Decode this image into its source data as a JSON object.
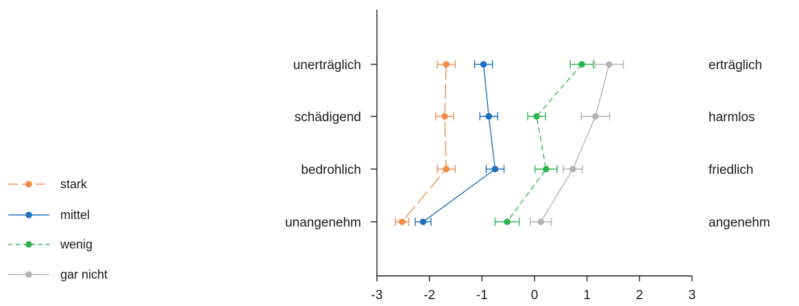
{
  "chart_data": {
    "type": "line",
    "orientation": "horizontal",
    "title": "",
    "xlabel": "",
    "ylabel": "",
    "xlim": [
      -3,
      3
    ],
    "x_ticks": [
      -3,
      -2,
      -1,
      0,
      1,
      2,
      3
    ],
    "x_tick_labels": [
      "-3",
      "-2",
      "-1",
      "0",
      "1",
      "2",
      "3"
    ],
    "grid": false,
    "legend_position": "left",
    "rows": [
      {
        "left_label": "unerträglich",
        "right_label": "erträglich"
      },
      {
        "left_label": "schädigend",
        "right_label": "harmlos"
      },
      {
        "left_label": "bedrohlich",
        "right_label": "friedlich"
      },
      {
        "left_label": "unangenehm",
        "right_label": "angenehm"
      }
    ],
    "series": [
      {
        "name": "stark",
        "color": "#f28a4a",
        "line_style": "long-dash",
        "values": [
          -1.68,
          -1.71,
          -1.68,
          -2.52
        ],
        "error": [
          0.17,
          0.17,
          0.17,
          0.13
        ]
      },
      {
        "name": "mittel",
        "color": "#1f6fbf",
        "line_style": "solid",
        "values": [
          -0.97,
          -0.87,
          -0.75,
          -2.12
        ],
        "error": [
          0.17,
          0.17,
          0.17,
          0.15
        ]
      },
      {
        "name": "wenig",
        "color": "#2fb350",
        "line_style": "dash",
        "values": [
          0.9,
          0.04,
          0.22,
          -0.52
        ],
        "error": [
          0.22,
          0.17,
          0.21,
          0.23
        ]
      },
      {
        "name": "gar nicht",
        "color": "#b3b3b3",
        "line_style": "solid",
        "values": [
          1.42,
          1.16,
          0.73,
          0.12
        ],
        "error": [
          0.27,
          0.27,
          0.18,
          0.2
        ]
      }
    ]
  }
}
